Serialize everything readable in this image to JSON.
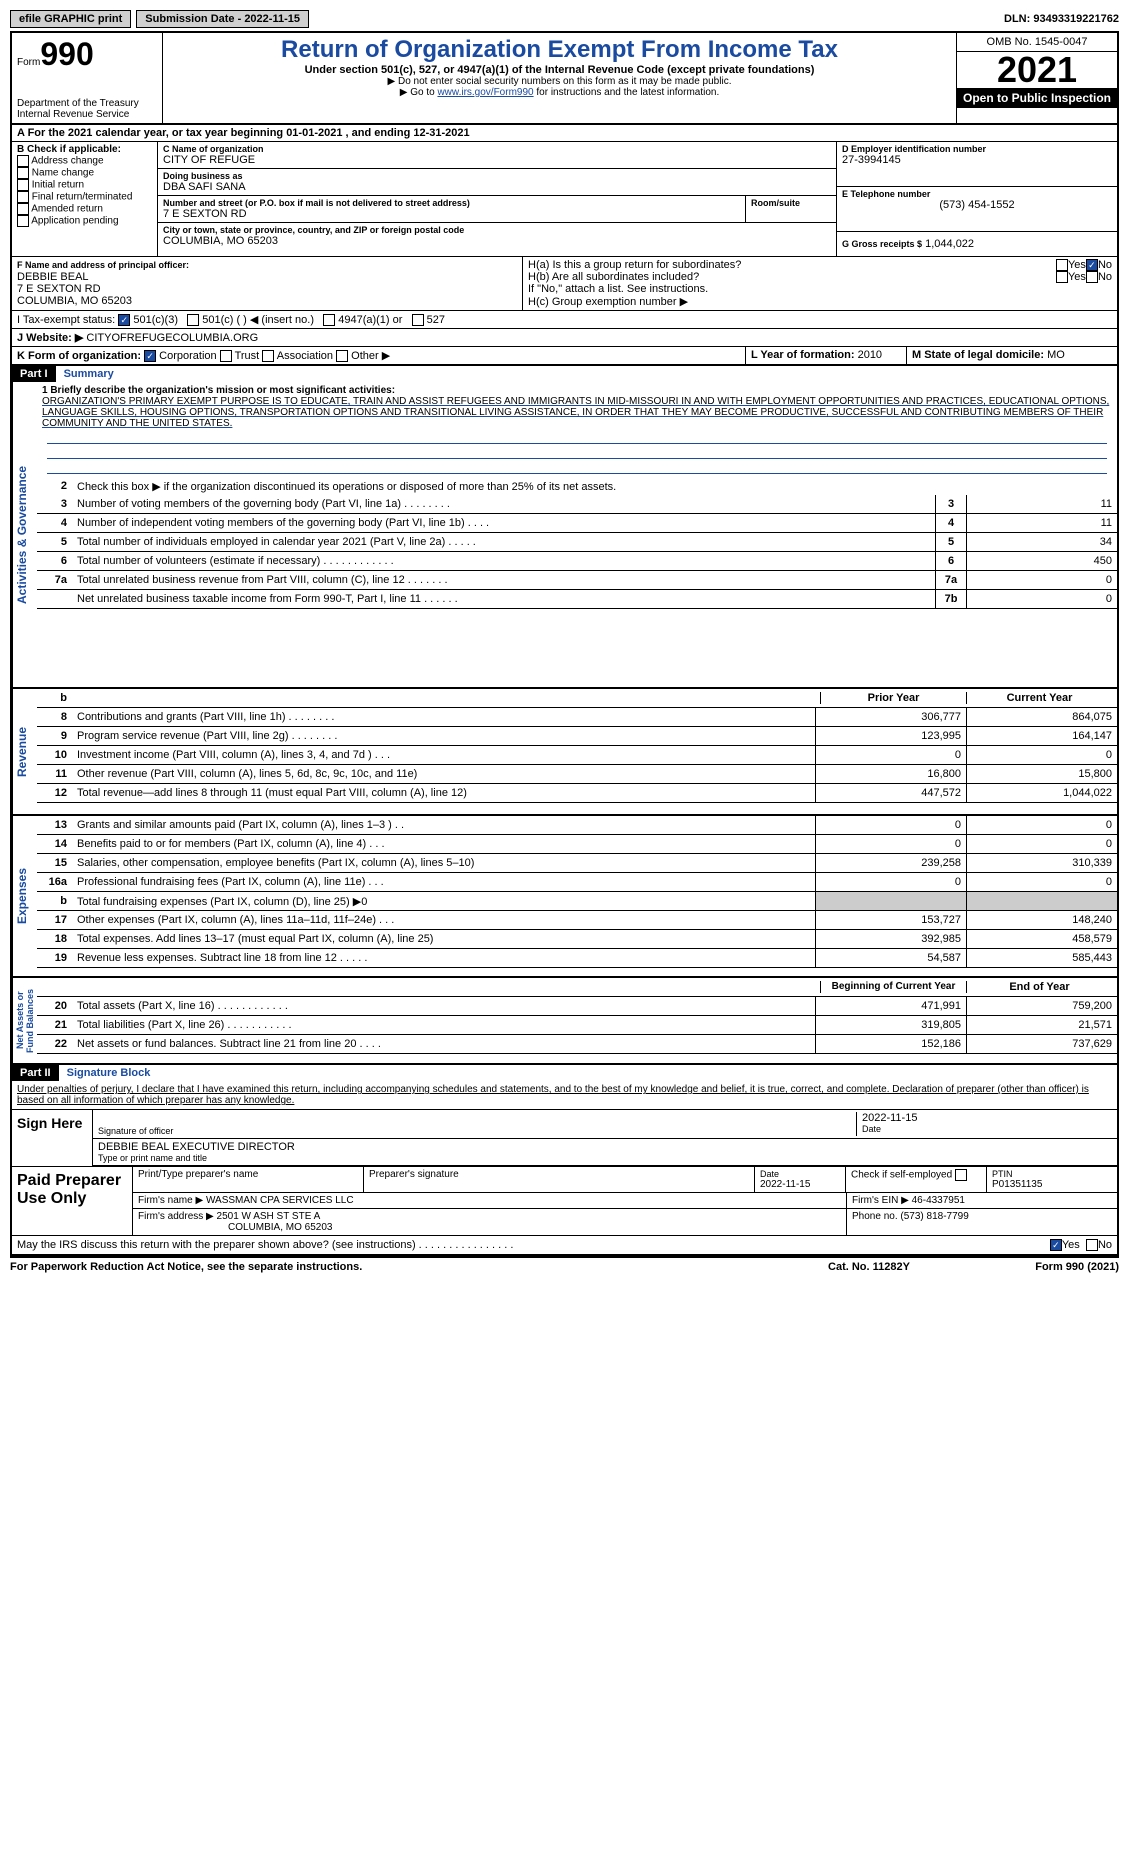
{
  "top": {
    "efile": "efile GRAPHIC print",
    "submission": "Submission Date - 2022-11-15",
    "dln": "DLN: 93493319221762"
  },
  "header": {
    "form_label": "Form",
    "form_num": "990",
    "title": "Return of Organization Exempt From Income Tax",
    "subtitle": "Under section 501(c), 527, or 4947(a)(1) of the Internal Revenue Code (except private foundations)",
    "note1": "▶ Do not enter social security numbers on this form as it may be made public.",
    "note2_pre": "▶ Go to ",
    "note2_link": "www.irs.gov/Form990",
    "note2_post": " for instructions and the latest information.",
    "dept": "Department of the Treasury Internal Revenue Service",
    "omb": "OMB No. 1545-0047",
    "year": "2021",
    "open": "Open to Public Inspection"
  },
  "a": {
    "text": "A For the 2021 calendar year, or tax year beginning 01-01-2021    , and ending 12-31-2021"
  },
  "b": {
    "label": "B Check if applicable:",
    "opts": [
      "Address change",
      "Name change",
      "Initial return",
      "Final return/terminated",
      "Amended return",
      "Application pending"
    ]
  },
  "c": {
    "name_label": "C Name of organization",
    "name": "CITY OF REFUGE",
    "dba_label": "Doing business as",
    "dba": "DBA SAFI SANA",
    "addr_label": "Number and street (or P.O. box if mail is not delivered to street address)",
    "addr": "7 E SEXTON RD",
    "room_label": "Room/suite",
    "city_label": "City or town, state or province, country, and ZIP or foreign postal code",
    "city": "COLUMBIA, MO  65203"
  },
  "d": {
    "label": "D Employer identification number",
    "ein": "27-3994145"
  },
  "e": {
    "label": "E Telephone number",
    "phone": "(573) 454-1552"
  },
  "g": {
    "label": "G Gross receipts $",
    "amt": "1,044,022"
  },
  "f": {
    "label": "F Name and address of principal officer:",
    "name": "DEBBIE BEAL",
    "addr1": "7 E SEXTON RD",
    "addr2": "COLUMBIA, MO  65203"
  },
  "h": {
    "a_label": "H(a)  Is this a group return for subordinates?",
    "b_label": "H(b)  Are all subordinates included?",
    "ifno": "If \"No,\" attach a list. See instructions.",
    "c_label": "H(c)  Group exemption number ▶",
    "yes": "Yes",
    "no": "No"
  },
  "i": {
    "label": "I    Tax-exempt status:",
    "o1": "501(c)(3)",
    "o2": "501(c) (   ) ◀ (insert no.)",
    "o3": "4947(a)(1) or",
    "o4": "527"
  },
  "j": {
    "label": "J    Website: ▶",
    "val": "CITYOFREFUGECOLUMBIA.ORG"
  },
  "k": {
    "label": "K Form of organization:",
    "o1": "Corporation",
    "o2": "Trust",
    "o3": "Association",
    "o4": "Other ▶"
  },
  "l": {
    "label": "L Year of formation:",
    "val": "2010"
  },
  "m": {
    "label": "M State of legal domicile:",
    "val": "MO"
  },
  "part1": {
    "label": "Part I",
    "title": "Summary",
    "l1": "1   Briefly describe the organization's mission or most significant activities:",
    "mission": "ORGANIZATION'S PRIMARY EXEMPT PURPOSE IS TO EDUCATE, TRAIN AND ASSIST REFUGEES AND IMMIGRANTS IN MID-MISSOURI IN AND WITH EMPLOYMENT OPPORTUNITIES AND PRACTICES, EDUCATIONAL OPTIONS, LANGUAGE SKILLS, HOUSING OPTIONS, TRANSPORTATION OPTIONS AND TRANSITIONAL LIVING ASSISTANCE, IN ORDER THAT THEY MAY BECOME PRODUCTIVE, SUCCESSFUL AND CONTRIBUTING MEMBERS OF THEIR COMMUNITY AND THE UNITED STATES.",
    "l2": "Check this box ▶       if the organization discontinued its operations or disposed of more than 25% of its net assets.",
    "lines": [
      {
        "n": "3",
        "t": "Number of voting members of the governing body (Part VI, line 1a)   .    .    .    .    .    .    .    .",
        "b": "3",
        "v": "11"
      },
      {
        "n": "4",
        "t": "Number of independent voting members of the governing body (Part VI, line 1b)    .    .    .    .",
        "b": "4",
        "v": "11"
      },
      {
        "n": "5",
        "t": "Total number of individuals employed in calendar year 2021 (Part V, line 2a)    .    .    .    .    .",
        "b": "5",
        "v": "34"
      },
      {
        "n": "6",
        "t": "Total number of volunteers (estimate if necessary)    .    .    .    .    .    .    .    .    .    .    .    .",
        "b": "6",
        "v": "450"
      },
      {
        "n": "7a",
        "t": "Total unrelated business revenue from Part VIII, column (C), line 12   .    .    .    .    .    .    .",
        "b": "7a",
        "v": "0"
      },
      {
        "n": "",
        "t": "Net unrelated business taxable income from Form 990-T, Part I, line 11   .    .    .    .    .    .",
        "b": "7b",
        "v": "0"
      }
    ],
    "prior": "Prior Year",
    "current": "Current Year",
    "rev": [
      {
        "n": "8",
        "t": "Contributions and grants (Part VIII, line 1h)   .    .    .    .    .    .    .    .",
        "p": "306,777",
        "c": "864,075"
      },
      {
        "n": "9",
        "t": "Program service revenue (Part VIII, line 2g)    .    .    .    .    .    .    .    .",
        "p": "123,995",
        "c": "164,147"
      },
      {
        "n": "10",
        "t": "Investment income (Part VIII, column (A), lines 3, 4, and 7d )    .    .    .",
        "p": "0",
        "c": "0"
      },
      {
        "n": "11",
        "t": "Other revenue (Part VIII, column (A), lines 5, 6d, 8c, 9c, 10c, and 11e)",
        "p": "16,800",
        "c": "15,800"
      },
      {
        "n": "12",
        "t": "Total revenue—add lines 8 through 11 (must equal Part VIII, column (A), line 12)",
        "p": "447,572",
        "c": "1,044,022"
      }
    ],
    "exp": [
      {
        "n": "13",
        "t": "Grants and similar amounts paid (Part IX, column (A), lines 1–3 )  .    .",
        "p": "0",
        "c": "0"
      },
      {
        "n": "14",
        "t": "Benefits paid to or for members (Part IX, column (A), line 4)   .    .    .",
        "p": "0",
        "c": "0"
      },
      {
        "n": "15",
        "t": "Salaries, other compensation, employee benefits (Part IX, column (A), lines 5–10)",
        "p": "239,258",
        "c": "310,339"
      },
      {
        "n": "16a",
        "t": "Professional fundraising fees (Part IX, column (A), line 11e)    .    .    .",
        "p": "0",
        "c": "0"
      },
      {
        "n": "b",
        "t": "Total fundraising expenses (Part IX, column (D), line 25) ▶0",
        "p": "",
        "c": "",
        "shaded": true
      },
      {
        "n": "17",
        "t": "Other expenses (Part IX, column (A), lines 11a–11d, 11f–24e)    .    .    .",
        "p": "153,727",
        "c": "148,240"
      },
      {
        "n": "18",
        "t": "Total expenses. Add lines 13–17 (must equal Part IX, column (A), line 25)",
        "p": "392,985",
        "c": "458,579"
      },
      {
        "n": "19",
        "t": "Revenue less expenses. Subtract line 18 from line 12   .    .    .    .    .",
        "p": "54,587",
        "c": "585,443"
      }
    ],
    "begin": "Beginning of Current Year",
    "end": "End of Year",
    "net": [
      {
        "n": "20",
        "t": "Total assets (Part X, line 16)   .    .    .    .    .    .    .    .    .    .    .    .",
        "p": "471,991",
        "c": "759,200"
      },
      {
        "n": "21",
        "t": "Total liabilities (Part X, line 26)    .    .    .    .    .    .    .    .    .    .    .",
        "p": "319,805",
        "c": "21,571"
      },
      {
        "n": "22",
        "t": "Net assets or fund balances. Subtract line 21 from line 20   .    .    .    .",
        "p": "152,186",
        "c": "737,629"
      }
    ]
  },
  "part2": {
    "label": "Part II",
    "title": "Signature Block",
    "decl": "Under penalties of perjury, I declare that I have examined this return, including accompanying schedules and statements, and to the best of my knowledge and belief, it is true, correct, and complete. Declaration of preparer (other than officer) is based on all information of which preparer has any knowledge.",
    "sign": "Sign Here",
    "sig_officer": "Signature of officer",
    "sig_date": "2022-11-15",
    "date_label": "Date",
    "name_title": "DEBBIE BEAL EXECUTIVE DIRECTOR",
    "type_name": "Type or print name and title",
    "paid": "Paid Preparer Use Only",
    "prep_name_label": "Print/Type preparer's name",
    "prep_sig_label": "Preparer's signature",
    "prep_date": "2022-11-15",
    "check_self": "Check         if self-employed",
    "ptin_label": "PTIN",
    "ptin": "P01351135",
    "firm_name_label": "Firm's name    ▶",
    "firm_name": "WASSMAN CPA SERVICES LLC",
    "firm_ein_label": "Firm's EIN ▶",
    "firm_ein": "46-4337951",
    "firm_addr_label": "Firm's address ▶",
    "firm_addr": "2501 W ASH ST STE A",
    "firm_city": "COLUMBIA, MO  65203",
    "firm_phone_label": "Phone no.",
    "firm_phone": "(573) 818-7799",
    "may_irs": "May the IRS discuss this return with the preparer shown above? (see instructions)    .    .    .    .    .    .    .    .    .    .    .    .    .    .    .    .",
    "yes": "Yes",
    "no": "No"
  },
  "footer": {
    "left": "For Paperwork Reduction Act Notice, see the separate instructions.",
    "center": "Cat. No. 11282Y",
    "right": "Form 990 (2021)"
  }
}
